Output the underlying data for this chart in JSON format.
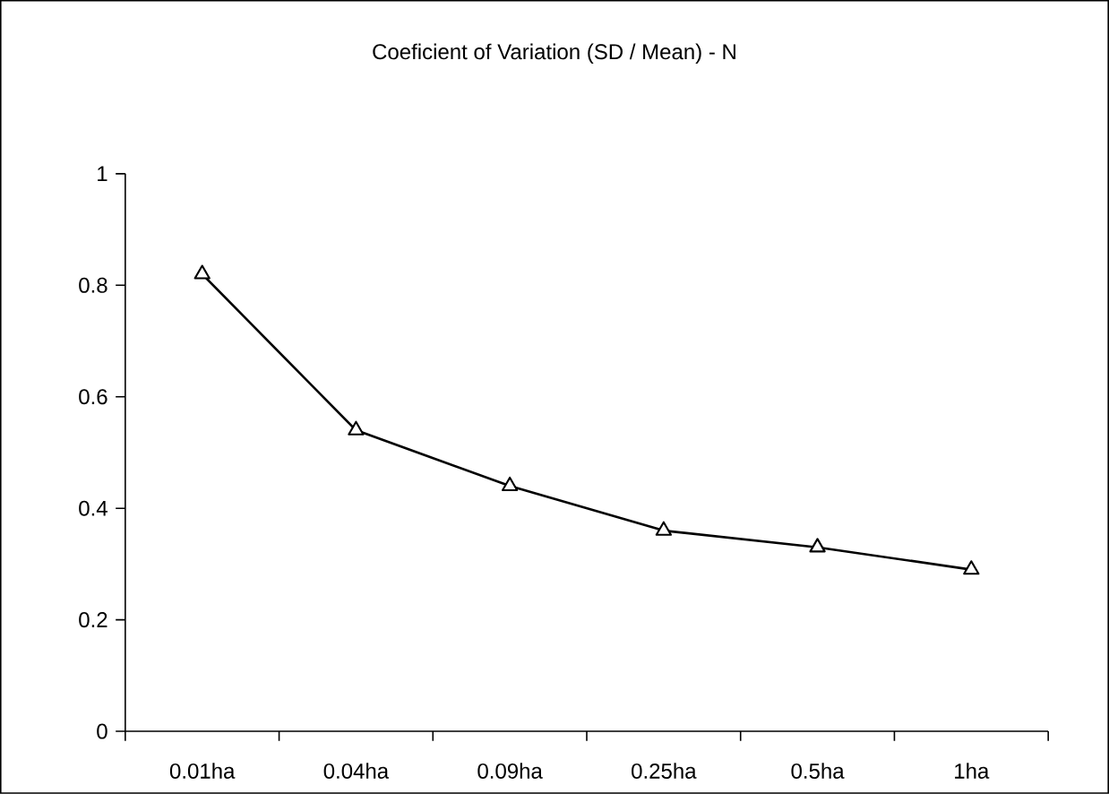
{
  "chart_data": {
    "type": "line",
    "title": "Coeficient of Variation (SD / Mean) - N",
    "categories": [
      "0.01ha",
      "0.04ha",
      "0.09ha",
      "0.25ha",
      "0.5ha",
      "1ha"
    ],
    "values": [
      0.82,
      0.54,
      0.44,
      0.36,
      0.33,
      0.29
    ],
    "color": "#000000",
    "marker": "triangle",
    "line_style": "solid",
    "ylim": [
      0,
      1
    ],
    "yticks": [
      0,
      0.2,
      0.4,
      0.6,
      0.8,
      1
    ],
    "grid": false
  }
}
